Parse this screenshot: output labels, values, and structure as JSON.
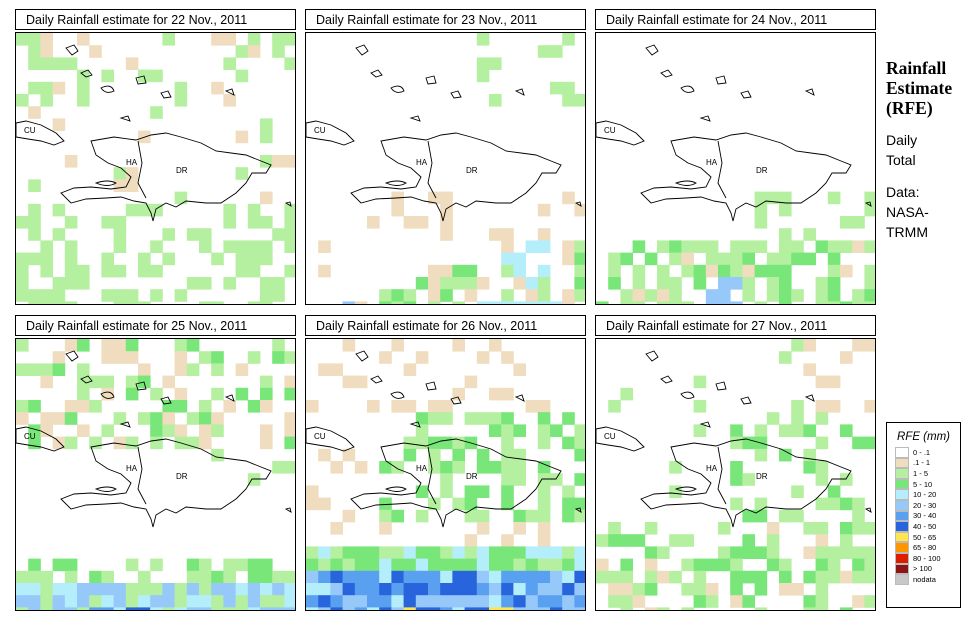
{
  "panels": [
    {
      "title": "Daily Rainfall estimate for  22 Nov., 2011"
    },
    {
      "title": "Daily Rainfall estimate for  23 Nov., 2011"
    },
    {
      "title": "Daily Rainfall estimate for  24 Nov., 2011"
    },
    {
      "title": "Daily Rainfall estimate for  25 Nov., 2011"
    },
    {
      "title": "Daily Rainfall estimate for  26 Nov., 2011"
    },
    {
      "title": "Daily Rainfall estimate for  27 Nov., 2011"
    }
  ],
  "map_labels": {
    "cuba": "CU",
    "haiti": "HA",
    "dominican_republic": "DR"
  },
  "side": {
    "heading1": "Rainfall",
    "heading2": "Estimate",
    "heading3": "(RFE)",
    "line1": "Daily",
    "line2": "Total",
    "data1": "Data:",
    "data2": "NASA-",
    "data3": "TRMM"
  },
  "legend": {
    "title": "RFE (mm)",
    "items": [
      {
        "label": "0 - .1",
        "color": "#ffffff"
      },
      {
        "label": ".1 - 1",
        "color": "#f0dcbe"
      },
      {
        "label": "1 - 5",
        "color": "#b4f0a0"
      },
      {
        "label": "5 - 10",
        "color": "#78e678"
      },
      {
        "label": "10 - 20",
        "color": "#b4eefa"
      },
      {
        "label": "20 - 30",
        "color": "#96c8fa"
      },
      {
        "label": "30 - 40",
        "color": "#5aa0f0"
      },
      {
        "label": "40 - 50",
        "color": "#2864dc"
      },
      {
        "label": "50 - 65",
        "color": "#ffe650"
      },
      {
        "label": "65 - 80",
        "color": "#ff9600"
      },
      {
        "label": "80 - 100",
        "color": "#dc1e00"
      },
      {
        "label": "> 100",
        "color": "#8c1414"
      },
      {
        "label": "nodata",
        "color": "#c8c8c8"
      }
    ]
  }
}
